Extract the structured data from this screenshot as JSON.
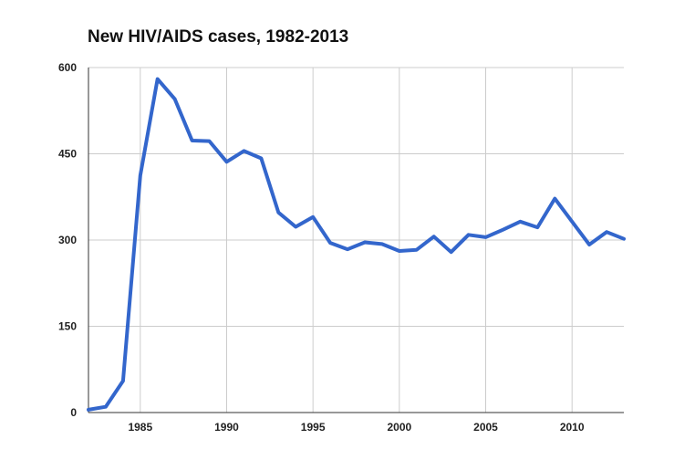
{
  "chart_data": {
    "type": "line",
    "title": "New HIV/AIDS cases, 1982-2013",
    "xlabel": "",
    "ylabel": "",
    "xlim": [
      1982,
      2013
    ],
    "ylim": [
      0,
      600
    ],
    "x_ticks": [
      1985,
      1990,
      1995,
      2000,
      2005,
      2010
    ],
    "y_ticks": [
      0,
      150,
      300,
      450,
      600
    ],
    "grid": true,
    "legend": "none",
    "series": [
      {
        "color": "#3366cc",
        "x": [
          1982,
          1983,
          1984,
          1985,
          1986,
          1987,
          1988,
          1989,
          1990,
          1991,
          1992,
          1993,
          1994,
          1995,
          1996,
          1997,
          1998,
          1999,
          2000,
          2001,
          2002,
          2003,
          2004,
          2005,
          2006,
          2007,
          2008,
          2009,
          2010,
          2011,
          2012,
          2013
        ],
        "values": [
          5,
          10,
          55,
          412,
          580,
          545,
          473,
          472,
          436,
          455,
          442,
          348,
          323,
          340,
          295,
          284,
          296,
          293,
          281,
          283,
          306,
          279,
          309,
          305,
          318,
          332,
          322,
          372,
          332,
          292,
          314,
          302
        ]
      }
    ]
  }
}
